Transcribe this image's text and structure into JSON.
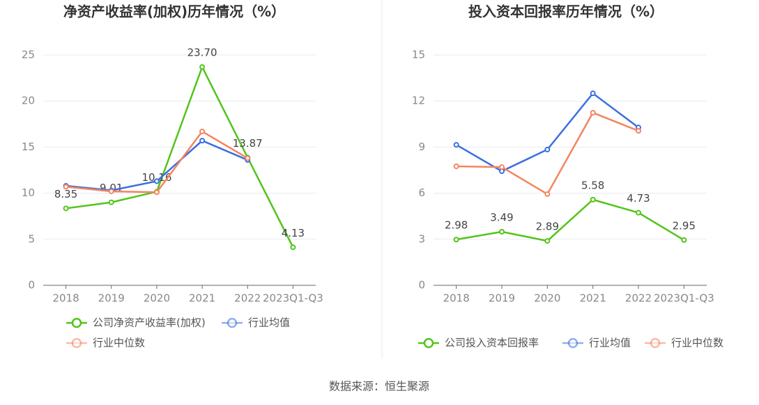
{
  "chart_data": [
    {
      "type": "line",
      "title": "净资产收益率(加权)历年情况（%）",
      "categories": [
        "2018",
        "2019",
        "2020",
        "2021",
        "2022",
        "2023Q1-Q3"
      ],
      "ylim": [
        0,
        25
      ],
      "yticks": [
        0,
        5,
        10,
        15,
        20,
        25
      ],
      "grid": true,
      "series": [
        {
          "name": "公司净资产收益率(加权)",
          "color": "#52c41a",
          "values": [
            8.35,
            9.01,
            10.16,
            23.7,
            13.87,
            4.13
          ],
          "value_labels": [
            "8.35",
            "9.01",
            "10.16",
            "23.70",
            "13.87",
            "4.13"
          ]
        },
        {
          "name": "行业均值",
          "color": "#3a6fe0",
          "values": [
            10.8,
            10.3,
            11.3,
            15.7,
            13.6,
            null
          ]
        },
        {
          "name": "行业中位数",
          "color": "#f4845f",
          "values": [
            10.7,
            10.2,
            10.1,
            16.7,
            13.8,
            null
          ]
        }
      ]
    },
    {
      "type": "line",
      "title": "投入资本回报率历年情况（%）",
      "categories": [
        "2018",
        "2019",
        "2020",
        "2021",
        "2022",
        "2023Q1-Q3"
      ],
      "ylim": [
        0,
        15
      ],
      "yticks": [
        0,
        3,
        6,
        9,
        12,
        15
      ],
      "grid": true,
      "series": [
        {
          "name": "公司投入资本回报率",
          "color": "#52c41a",
          "values": [
            2.98,
            3.49,
            2.89,
            5.58,
            4.73,
            2.95
          ],
          "value_labels": [
            "2.98",
            "3.49",
            "2.89",
            "5.58",
            "4.73",
            "2.95"
          ]
        },
        {
          "name": "行业均值",
          "color": "#3a6fe0",
          "values": [
            9.15,
            7.43,
            8.84,
            12.5,
            10.28,
            null
          ]
        },
        {
          "name": "行业中位数",
          "color": "#f4845f",
          "values": [
            7.75,
            7.7,
            5.94,
            11.24,
            10.06,
            null
          ]
        }
      ]
    }
  ],
  "source": "数据来源：恒生聚源"
}
